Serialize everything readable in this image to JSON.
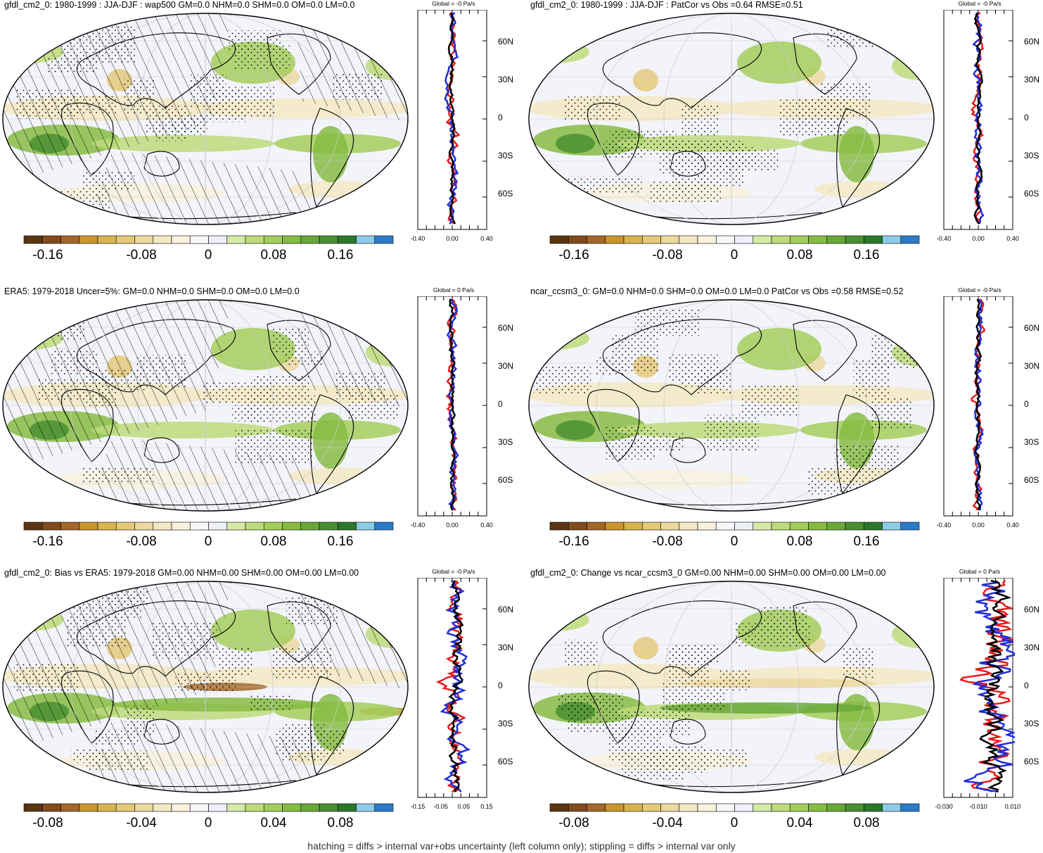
{
  "caption": "hatching = diffs > internal var+obs uncertainty (left column only); stippling = diffs > internal var only",
  "colors": {
    "palette": [
      "#5b3513",
      "#7f4c1e",
      "#a2672a",
      "#c8962d",
      "#d8b450",
      "#e4c97a",
      "#ecd9a1",
      "#f3e8c3",
      "#f8f1dd",
      "#f7f8fc",
      "#eef0f8",
      "#d6e9a8",
      "#bddb7a",
      "#a3cd5c",
      "#86bb43",
      "#68a83a",
      "#4a9033",
      "#2e7729",
      "#8ecbe6",
      "#2d7bc7"
    ],
    "ocean": "#f3f4fa",
    "profile_red": "#e81b1b",
    "profile_blue": "#1e2fd6",
    "profile_black": "#000000"
  },
  "panels": [
    {
      "id": "p1",
      "title": "gfdl_cm2_0: 1980-1999 : JJA-DJF : wap500 GM=0.0 NHM=0.0 SHM=0.0 OM=0.0 LM=0.0",
      "profile_title": "Global = -0 Pa/s",
      "cbar_labels": [
        "-0.16",
        "-0.08",
        "0",
        "0.08",
        "0.16"
      ],
      "xticks": [
        "-0.40",
        "0.00",
        "0.40"
      ],
      "lat_labels": [
        "60N",
        "30N",
        "0",
        "30S",
        "60S"
      ],
      "hatched": true
    },
    {
      "id": "p2",
      "title": "gfdl_cm2_0: 1980-1999 : JJA-DJF : PatCor vs Obs =0.64 RMSE=0.51",
      "profile_title": "Global = -0 Pa/s",
      "cbar_labels": [
        "-0.16",
        "-0.08",
        "0",
        "0.08",
        "0.16"
      ],
      "xticks": [
        "-0.40",
        "0.00",
        "0.40"
      ],
      "lat_labels": [
        "60N",
        "30N",
        "0",
        "30S",
        "60S"
      ],
      "hatched": false
    },
    {
      "id": "p3",
      "title": "ERA5: 1979-2018 Uncer=5%: GM=0.0 NHM=0.0 SHM=0.0 OM=0.0 LM=0.0",
      "profile_title": "Global = 0 Pa/s",
      "cbar_labels": [
        "-0.16",
        "-0.08",
        "0",
        "0.08",
        "0.16"
      ],
      "xticks": [
        "-0.40",
        "0.00",
        "0.40"
      ],
      "lat_labels": [
        "60N",
        "30N",
        "0",
        "30S",
        "60S"
      ],
      "hatched": true
    },
    {
      "id": "p4",
      "title": "ncar_ccsm3_0: GM=0.0 NHM=0.0 SHM=0.0 OM=0.0 LM=0.0 PatCor vs Obs =0.58 RMSE=0.52",
      "profile_title": "Global = -0 Pa/s",
      "cbar_labels": [
        "-0.16",
        "-0.08",
        "0",
        "0.08",
        "0.16"
      ],
      "xticks": [
        "-0.40",
        "0.00",
        "0.40"
      ],
      "lat_labels": [
        "60N",
        "30N",
        "0",
        "30S",
        "60S"
      ],
      "hatched": false
    },
    {
      "id": "p5",
      "title": "gfdl_cm2_0: Bias vs ERA5: 1979-2018 GM=0.00 NHM=0.00 SHM=0.00 OM=0.00 LM=0.00",
      "profile_title": "Global = -0 Pa/s",
      "cbar_labels": [
        "-0.08",
        "-0.04",
        "0",
        "0.04",
        "0.08"
      ],
      "xticks": [
        "-0.15",
        "-0.05",
        "0.05",
        "0.15"
      ],
      "lat_labels": [
        "60N",
        "30N",
        "0",
        "30S",
        "60S"
      ],
      "hatched": true
    },
    {
      "id": "p6",
      "title": "gfdl_cm2_0: Change vs ncar_ccsm3_0 GM=0.00 NHM=0.00 SHM=0.00 OM=0.00 LM=0.00",
      "profile_title": "Global = 0 Pa/s",
      "cbar_labels": [
        "-0.08",
        "-0.04",
        "0",
        "0.04",
        "0.08"
      ],
      "xticks": [
        "-0.030",
        "-0.010",
        "0.010"
      ],
      "lat_labels": [
        "60N",
        "30N",
        "0",
        "30S",
        "60S"
      ],
      "hatched": false
    }
  ]
}
